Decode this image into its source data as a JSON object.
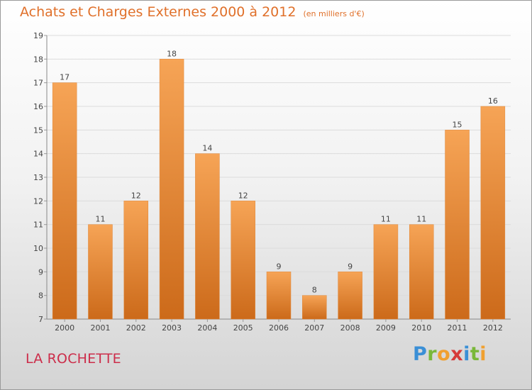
{
  "chart_data": {
    "type": "bar",
    "title": "Achats et Charges Externes 2000 à 2012",
    "subtitle": "(en milliers d'€)",
    "categories": [
      "2000",
      "2001",
      "2002",
      "2003",
      "2004",
      "2005",
      "2006",
      "2007",
      "2008",
      "2009",
      "2010",
      "2011",
      "2012"
    ],
    "values": [
      17,
      11,
      12,
      18,
      14,
      12,
      9,
      8,
      9,
      11,
      11,
      15,
      16
    ],
    "ylim": [
      7,
      19
    ],
    "yticks": [
      7,
      8,
      9,
      10,
      11,
      12,
      13,
      14,
      15,
      16,
      17,
      18,
      19
    ],
    "grid": true,
    "bar_color": "#f0913a"
  },
  "footer": {
    "location": "LA ROCHETTE",
    "brand_letters": [
      "P",
      "r",
      "o",
      "x",
      "i",
      "t",
      "i"
    ],
    "brand_colors": [
      "#3a8fd6",
      "#7ab83a",
      "#f0a030",
      "#d63a3a",
      "#3a8fd6",
      "#7ab83a",
      "#f0a030"
    ]
  }
}
